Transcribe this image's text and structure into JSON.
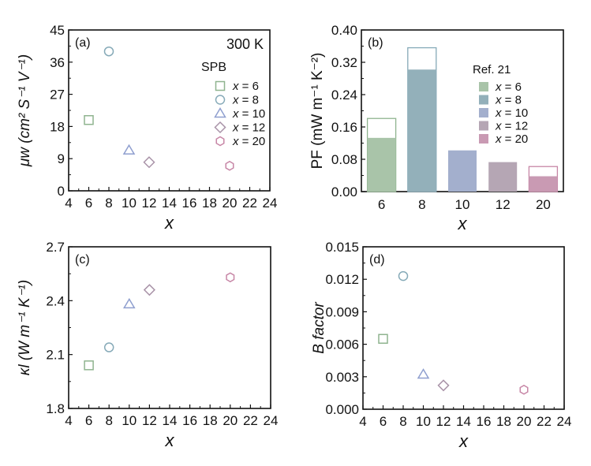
{
  "colors": {
    "x6": "#8fb48f",
    "x8": "#86aab8",
    "x10": "#8f9fcf",
    "x12": "#a993a8",
    "x20": "#c786a6",
    "bar_x6": "#a9c4a9",
    "bar_x8": "#93b0ba",
    "bar_x10": "#a3afcd",
    "bar_x12": "#b5a6b4",
    "bar_x20": "#c99ab3"
  },
  "chart_data": [
    {
      "panel": "(a)",
      "type": "scatter",
      "xlabel": "x",
      "ylabel": "μw (cm² S⁻¹ V⁻¹)",
      "xlim": [
        4,
        24
      ],
      "ylim": [
        0,
        45
      ],
      "xticks": [
        4,
        6,
        8,
        10,
        12,
        14,
        16,
        18,
        20,
        22,
        24
      ],
      "yticks": [
        0,
        9,
        18,
        27,
        36,
        45
      ],
      "annotation": "300 K",
      "legend_title": "SPB",
      "legend_placement": "right",
      "series": [
        {
          "name": "x = 6",
          "marker": "square",
          "x": 6,
          "y": 19.8
        },
        {
          "name": "x = 8",
          "marker": "circle",
          "x": 8,
          "y": 39.0
        },
        {
          "name": "x = 10",
          "marker": "triangle",
          "x": 10,
          "y": 11.3
        },
        {
          "name": "x = 12",
          "marker": "diamond",
          "x": 12,
          "y": 8.0
        },
        {
          "name": "x = 20",
          "marker": "hexagon",
          "x": 20,
          "y": 7.0
        }
      ]
    },
    {
      "panel": "(b)",
      "type": "bar",
      "xlabel": "x",
      "ylabel": "PF (mW m⁻¹ K⁻²)",
      "ylim": [
        0,
        0.4
      ],
      "yticks": [
        "0.00",
        "0.08",
        "0.16",
        "0.24",
        "0.32",
        "0.40"
      ],
      "categories": [
        "6",
        "8",
        "10",
        "12",
        "20"
      ],
      "legend_title": "Ref. 21",
      "legend_placement": "top-right",
      "legend": [
        "x = 6",
        "x = 8",
        "x = 10",
        "x = 12",
        "x = 20"
      ],
      "values": [
        0.133,
        0.302,
        0.102,
        0.073,
        0.038
      ],
      "outline_values": [
        0.181,
        0.356,
        null,
        null,
        0.062
      ]
    },
    {
      "panel": "(c)",
      "type": "scatter",
      "xlabel": "x",
      "ylabel": "κl (W m⁻¹ K⁻¹)",
      "xlim": [
        4,
        24
      ],
      "ylim": [
        1.8,
        2.7
      ],
      "xticks": [
        4,
        6,
        8,
        10,
        12,
        14,
        16,
        18,
        20,
        22,
        24
      ],
      "yticks": [
        "1.8",
        "2.1",
        "2.4",
        "2.7"
      ],
      "series": [
        {
          "marker": "square",
          "x": 6,
          "y": 2.04
        },
        {
          "marker": "circle",
          "x": 8,
          "y": 2.14
        },
        {
          "marker": "triangle",
          "x": 10,
          "y": 2.38
        },
        {
          "marker": "diamond",
          "x": 12,
          "y": 2.46
        },
        {
          "marker": "hexagon",
          "x": 20,
          "y": 2.53
        }
      ]
    },
    {
      "panel": "(d)",
      "type": "scatter",
      "xlabel": "x",
      "ylabel": "B factor",
      "xlim": [
        4,
        24
      ],
      "ylim": [
        0,
        0.015
      ],
      "xticks": [
        4,
        6,
        8,
        10,
        12,
        14,
        16,
        18,
        20,
        22,
        24
      ],
      "yticks": [
        "0.000",
        "0.003",
        "0.006",
        "0.009",
        "0.012",
        "0.015"
      ],
      "series": [
        {
          "marker": "square",
          "x": 6,
          "y": 0.0065
        },
        {
          "marker": "circle",
          "x": 8,
          "y": 0.0123
        },
        {
          "marker": "triangle",
          "x": 10,
          "y": 0.0032
        },
        {
          "marker": "diamond",
          "x": 12,
          "y": 0.0022
        },
        {
          "marker": "hexagon",
          "x": 20,
          "y": 0.0018
        }
      ]
    }
  ]
}
